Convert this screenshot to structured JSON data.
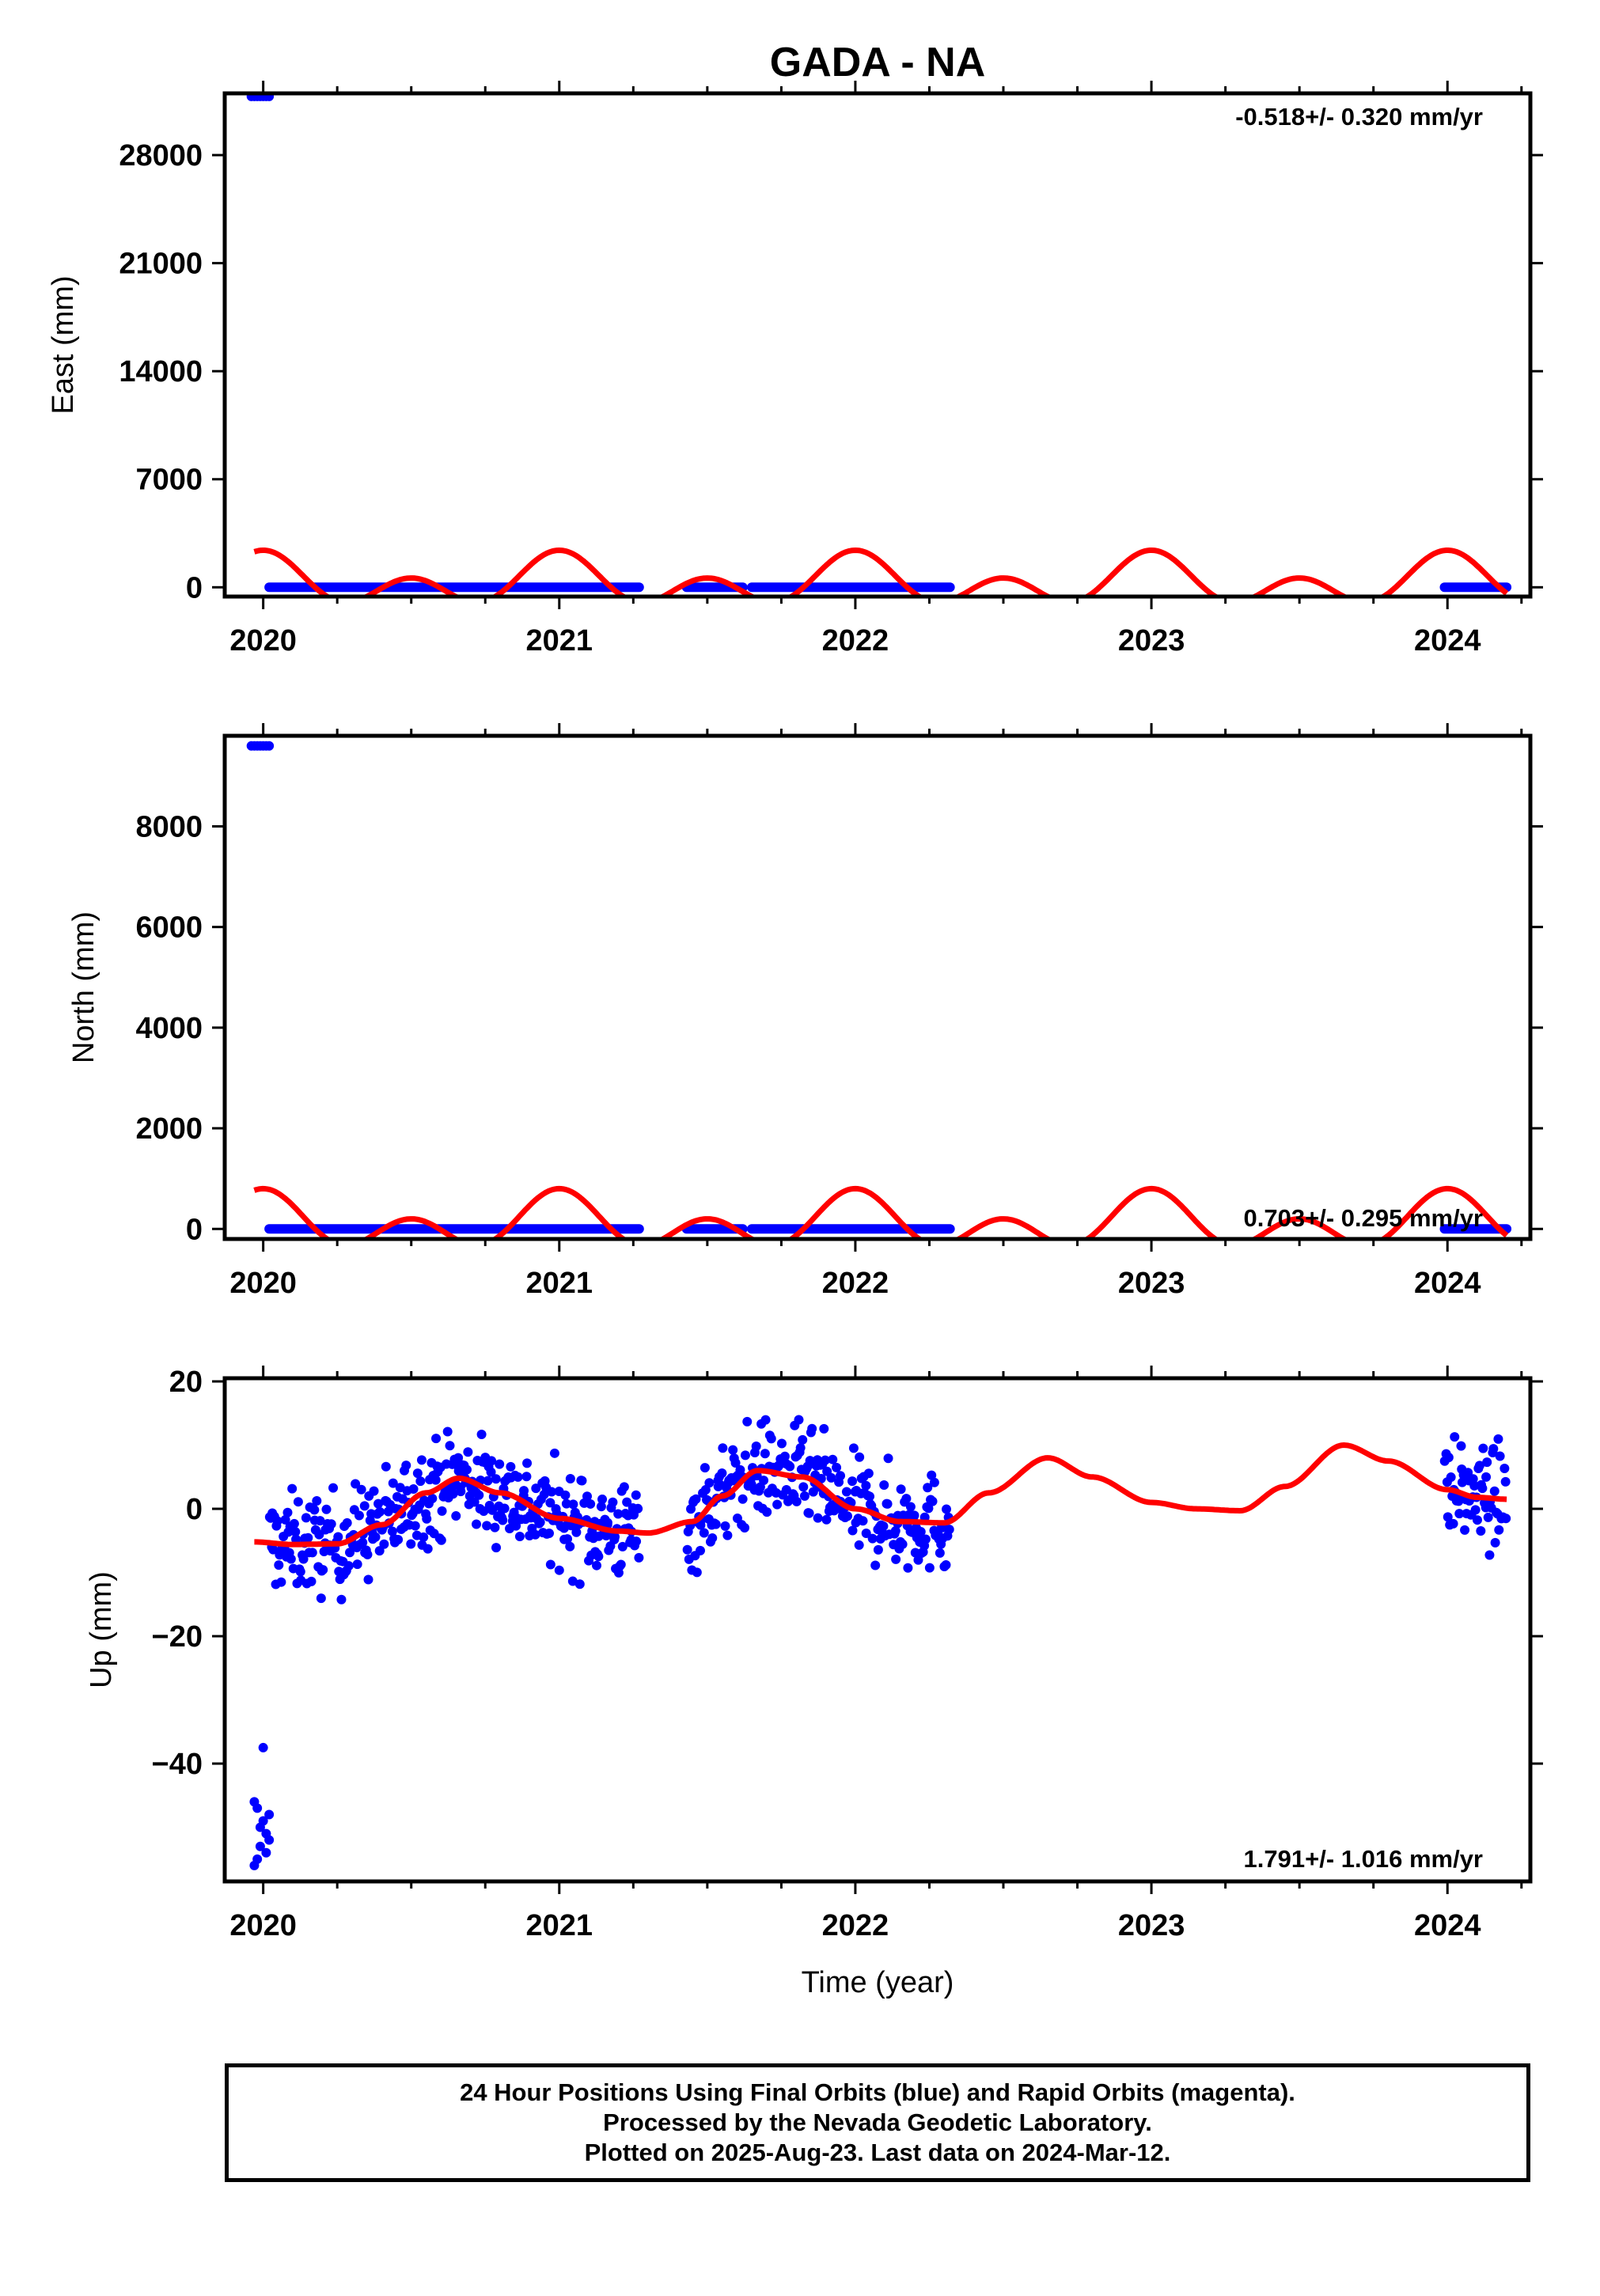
{
  "chart_data": [
    {
      "type": "scatter",
      "panel": "east",
      "title": "GADA - NA",
      "ylabel": "East (mm)",
      "ylim": [
        -600,
        32000
      ],
      "yticks": [
        0,
        7000,
        14000,
        21000,
        28000
      ],
      "xlim": [
        2019.87,
        2024.28
      ],
      "xticks": [
        2020,
        2021,
        2022,
        2023,
        2024
      ],
      "rate_text": "-0.518+/- 0.320 mm/yr",
      "series": [
        {
          "name": "Final Orbits",
          "color": "#0000ff",
          "points": [
            [
              2019.96,
              31800
            ],
            [
              2019.97,
              31800
            ],
            [
              2019.98,
              31800
            ],
            [
              2019.99,
              31800
            ],
            [
              2020.0,
              31800
            ],
            [
              2020.01,
              31800
            ],
            [
              2020.02,
              31800
            ]
          ],
          "segments": [
            [
              2020.02,
              2021.27,
              0
            ],
            [
              2021.43,
              2021.62,
              0
            ],
            [
              2021.65,
              2022.32,
              0
            ],
            [
              2023.99,
              2024.2,
              0
            ]
          ]
        },
        {
          "name": "Model",
          "color": "#ff0000",
          "curve": {
            "mean": 300,
            "annual": 900,
            "semi": 1200
          }
        }
      ]
    },
    {
      "type": "scatter",
      "panel": "north",
      "title": "",
      "ylabel": "North (mm)",
      "ylim": [
        -200,
        9800
      ],
      "yticks": [
        0,
        2000,
        4000,
        6000,
        8000
      ],
      "xlim": [
        2019.87,
        2024.28
      ],
      "xticks": [
        2020,
        2021,
        2022,
        2023,
        2024
      ],
      "rate_text": "0.703+/- 0.295 mm/yr",
      "series": [
        {
          "name": "Final Orbits",
          "color": "#0000ff",
          "points": [
            [
              2019.96,
              9600
            ],
            [
              2019.97,
              9600
            ],
            [
              2019.98,
              9600
            ],
            [
              2019.99,
              9600
            ],
            [
              2020.0,
              9600
            ],
            [
              2020.01,
              9600
            ],
            [
              2020.02,
              9600
            ]
          ],
          "segments": [
            [
              2020.02,
              2021.27,
              0
            ],
            [
              2021.43,
              2021.62,
              0
            ],
            [
              2021.65,
              2022.32,
              0
            ],
            [
              2023.99,
              2024.2,
              0
            ]
          ]
        },
        {
          "name": "Model",
          "color": "#ff0000",
          "curve": {
            "mean": 100,
            "annual": 300,
            "semi": 400
          }
        }
      ]
    },
    {
      "type": "scatter",
      "panel": "up",
      "title": "",
      "ylabel": "Up (mm)",
      "xlabel": "Time (year)",
      "ylim": [
        -58.5,
        20.5
      ],
      "yticks": [
        -40,
        -20,
        0,
        20
      ],
      "ytick_labels": [
        "−40",
        "−20",
        "0",
        "20"
      ],
      "xlim": [
        2019.87,
        2024.28
      ],
      "xticks": [
        2020,
        2021,
        2022,
        2023,
        2024
      ],
      "rate_text": "1.791+/- 1.016 mm/yr",
      "series": [
        {
          "name": "Final Orbits",
          "color": "#0000ff",
          "outliers": [
            [
              2019.97,
              -56
            ],
            [
              2019.97,
              -46
            ],
            [
              2019.98,
              -55
            ],
            [
              2019.98,
              -47
            ],
            [
              2019.99,
              -50
            ],
            [
              2019.99,
              -53
            ],
            [
              2020.0,
              -37.5
            ],
            [
              2020.0,
              -49
            ],
            [
              2020.01,
              -51
            ],
            [
              2020.01,
              -54
            ],
            [
              2020.02,
              -52
            ],
            [
              2020.02,
              -48
            ]
          ],
          "scatter_ranges": [
            [
              2020.02,
              2021.27
            ],
            [
              2021.43,
              2022.32
            ],
            [
              2023.99,
              2024.2
            ]
          ],
          "scatter_spread": 5.5,
          "scatter_count_per_year": 300
        },
        {
          "name": "Model",
          "color": "#ff0000",
          "knots": [
            [
              2019.97,
              -5.2
            ],
            [
              2020.1,
              -5.6
            ],
            [
              2020.25,
              -5.5
            ],
            [
              2020.4,
              -2.5
            ],
            [
              2020.55,
              2.5
            ],
            [
              2020.66,
              4.8
            ],
            [
              2020.8,
              2.5
            ],
            [
              2021.0,
              -1.5
            ],
            [
              2021.2,
              -3.5
            ],
            [
              2021.3,
              -3.8
            ],
            [
              2021.45,
              -2.0
            ],
            [
              2021.55,
              2.0
            ],
            [
              2021.67,
              6.0
            ],
            [
              2021.82,
              5.0
            ],
            [
              2022.0,
              0.0
            ],
            [
              2022.15,
              -2.0
            ],
            [
              2022.3,
              -2.2
            ],
            [
              2022.45,
              2.5
            ],
            [
              2022.65,
              8.0
            ],
            [
              2022.8,
              5.0
            ],
            [
              2023.0,
              1.0
            ],
            [
              2023.15,
              0.0
            ],
            [
              2023.3,
              -0.3
            ],
            [
              2023.45,
              3.5
            ],
            [
              2023.65,
              10.0
            ],
            [
              2023.8,
              7.5
            ],
            [
              2024.0,
              3.0
            ],
            [
              2024.1,
              1.8
            ],
            [
              2024.2,
              1.5
            ]
          ]
        }
      ]
    }
  ],
  "footer": {
    "line1": "24 Hour Positions Using Final Orbits (blue) and Rapid Orbits (magenta).",
    "line2": "Processed by the Nevada Geodetic Laboratory.",
    "line3": "Plotted on 2025-Aug-23. Last data on 2024-Mar-12."
  }
}
